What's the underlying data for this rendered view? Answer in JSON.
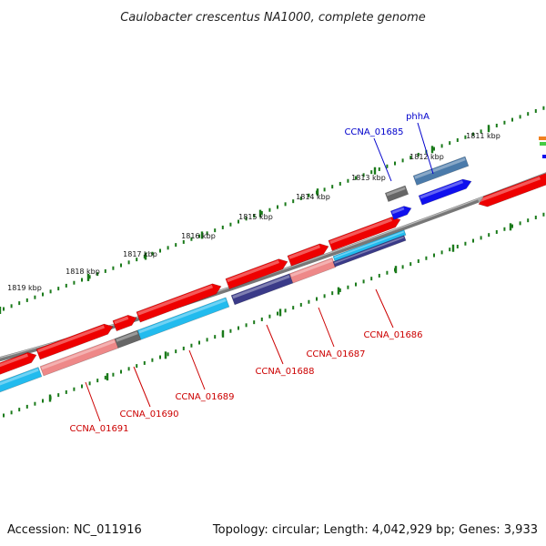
{
  "title": "Caulobacter crescentus NA1000, complete genome",
  "footer": {
    "accession": "Accession: NC_011916",
    "summary": "Topology: circular; Length: 4,042,929 bp; Genes: 3,933"
  },
  "ticks": [
    {
      "label": "1811 kbp"
    },
    {
      "label": "1812 kbp"
    },
    {
      "label": "1813 kbp"
    },
    {
      "label": "1814 kbp"
    },
    {
      "label": "1815 kbp"
    },
    {
      "label": "1816 kbp"
    },
    {
      "label": "1817 kbp"
    },
    {
      "label": "1818 kbp"
    },
    {
      "label": "1819 kbp"
    }
  ],
  "colors": {
    "backbone": "#777777",
    "tick": "#1a7a1a",
    "gene_forward": "#ee0000",
    "gene_blue": "#1010ee",
    "cds_light_blue": "#22bbee",
    "cds_pink": "#ee8888",
    "cds_gray": "#666666",
    "cds_navy": "#3a3a88",
    "cds_steel": "#4a7aaa",
    "label_red": "#cc0000",
    "label_blue": "#0000cc"
  },
  "gene_labels": [
    {
      "text": "CCNA_01685",
      "color": "blue"
    },
    {
      "text": "phhA",
      "color": "blue"
    },
    {
      "text": "CCNA_01686",
      "color": "red"
    },
    {
      "text": "CCNA_01687",
      "color": "red"
    },
    {
      "text": "CCNA_01688",
      "color": "red"
    },
    {
      "text": "CCNA_01689",
      "color": "red"
    },
    {
      "text": "CCNA_01690",
      "color": "red"
    },
    {
      "text": "CCNA_01691",
      "color": "red"
    }
  ]
}
